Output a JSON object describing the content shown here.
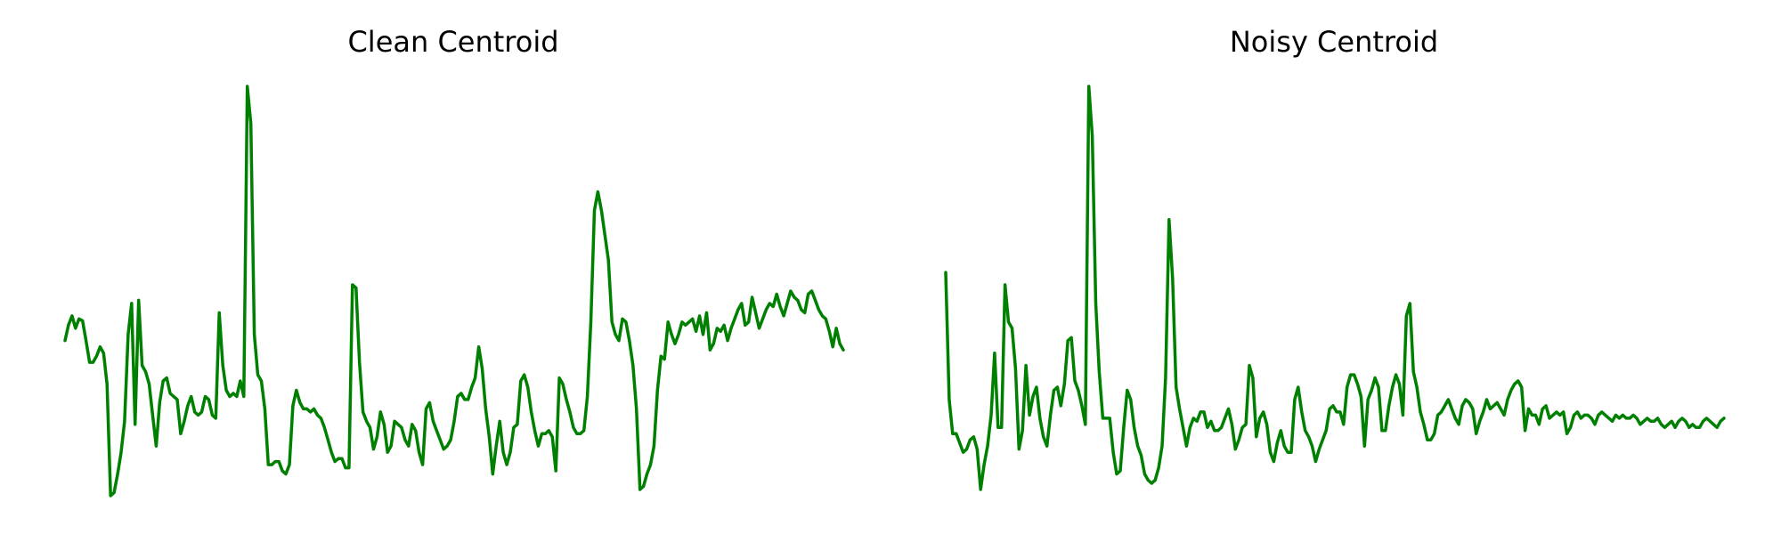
{
  "figure": {
    "titles": [
      "Clean Centroid",
      "Noisy Centroid"
    ]
  },
  "chart_data": [
    {
      "type": "line",
      "title": "Clean Centroid",
      "axes_visible": false,
      "grid": false,
      "color": "#008000",
      "ylim": [
        -2.2,
        4.3
      ],
      "series": [
        {
          "y": [
            0.2,
            0.45,
            0.6,
            0.4,
            0.55,
            0.52,
            0.2,
            -0.15,
            -0.15,
            -0.05,
            0.1,
            0.0,
            -0.5,
            -2.3,
            -2.25,
            -1.95,
            -1.6,
            -1.1,
            0.3,
            0.8,
            -1.15,
            0.85,
            -0.2,
            -0.3,
            -0.5,
            -1.0,
            -1.5,
            -0.8,
            -0.45,
            -0.4,
            -0.65,
            -0.7,
            -0.75,
            -1.3,
            -1.1,
            -0.85,
            -0.7,
            -0.95,
            -1.0,
            -0.95,
            -0.7,
            -0.75,
            -1.0,
            -1.05,
            0.65,
            -0.2,
            -0.6,
            -0.7,
            -0.65,
            -0.7,
            -0.45,
            -0.7,
            4.3,
            3.7,
            0.3,
            -0.35,
            -0.45,
            -0.9,
            -1.8,
            -1.8,
            -1.75,
            -1.75,
            -1.9,
            -1.95,
            -1.8,
            -0.85,
            -0.6,
            -0.8,
            -0.9,
            -0.9,
            -0.95,
            -0.9,
            -1.0,
            -1.05,
            -1.2,
            -1.4,
            -1.6,
            -1.75,
            -1.7,
            -1.7,
            -1.85,
            -1.85,
            1.1,
            1.05,
            -0.15,
            -0.95,
            -1.1,
            -1.2,
            -1.55,
            -1.35,
            -0.95,
            -1.15,
            -1.6,
            -1.5,
            -1.1,
            -1.15,
            -1.2,
            -1.4,
            -1.5,
            -1.15,
            -1.25,
            -1.6,
            -1.8,
            -0.9,
            -0.8,
            -1.1,
            -1.25,
            -1.4,
            -1.55,
            -1.5,
            -1.4,
            -1.1,
            -0.7,
            -0.65,
            -0.75,
            -0.75,
            -0.55,
            -0.4,
            0.1,
            -0.25,
            -0.9,
            -1.35,
            -1.95,
            -1.5,
            -1.1,
            -1.6,
            -1.8,
            -1.6,
            -1.2,
            -1.15,
            -0.45,
            -0.35,
            -0.55,
            -0.95,
            -1.25,
            -1.5,
            -1.3,
            -1.3,
            -1.25,
            -1.35,
            -1.9,
            -0.4,
            -0.5,
            -0.75,
            -0.95,
            -1.2,
            -1.3,
            -1.3,
            -1.25,
            -0.7,
            0.5,
            2.3,
            2.6,
            2.3,
            1.9,
            1.5,
            0.5,
            0.3,
            0.2,
            0.55,
            0.5,
            0.2,
            -0.2,
            -0.9,
            -2.2,
            -2.15,
            -1.95,
            -1.8,
            -1.5,
            -0.6,
            -0.05,
            -0.1,
            0.5,
            0.3,
            0.15,
            0.3,
            0.5,
            0.45,
            0.5,
            0.55,
            0.35,
            0.6,
            0.3,
            0.65,
            0.05,
            0.15,
            0.4,
            0.35,
            0.45,
            0.2,
            0.4,
            0.55,
            0.7,
            0.8,
            0.45,
            0.5,
            0.9,
            0.65,
            0.4,
            0.55,
            0.7,
            0.8,
            0.75,
            0.95,
            0.75,
            0.6,
            0.8,
            1.0,
            0.9,
            0.85,
            0.7,
            0.65,
            0.95,
            1.0,
            0.85,
            0.7,
            0.6,
            0.55,
            0.35,
            0.1,
            0.4,
            0.15,
            0.05
          ]
        }
      ]
    },
    {
      "type": "line",
      "title": "Noisy Centroid",
      "axes_visible": false,
      "grid": false,
      "color": "#008000",
      "ylim": [
        -2.2,
        4.3
      ],
      "series": [
        {
          "y": [
            1.3,
            -0.75,
            -1.3,
            -1.3,
            -1.45,
            -1.6,
            -1.55,
            -1.4,
            -1.35,
            -1.55,
            -2.2,
            -1.8,
            -1.5,
            -1.0,
            0.0,
            -1.2,
            -1.2,
            1.1,
            0.5,
            0.4,
            -0.25,
            -1.55,
            -1.25,
            -0.2,
            -1.0,
            -0.7,
            -0.55,
            -1.05,
            -1.35,
            -1.5,
            -1.0,
            -0.6,
            -0.55,
            -0.85,
            -0.5,
            0.2,
            0.25,
            -0.45,
            -0.6,
            -0.85,
            -1.15,
            4.3,
            3.5,
            0.8,
            -0.3,
            -1.05,
            -1.05,
            -1.05,
            -1.6,
            -1.95,
            -1.9,
            -1.2,
            -0.6,
            -0.75,
            -1.2,
            -1.5,
            -1.65,
            -1.95,
            -2.05,
            -2.1,
            -2.05,
            -1.85,
            -1.5,
            -0.4,
            2.15,
            1.2,
            -0.55,
            -0.9,
            -1.2,
            -1.5,
            -1.2,
            -1.05,
            -1.1,
            -0.95,
            -0.95,
            -1.2,
            -1.1,
            -1.25,
            -1.25,
            -1.2,
            -1.05,
            -0.9,
            -1.15,
            -1.55,
            -1.4,
            -1.2,
            -1.15,
            -0.2,
            -0.4,
            -1.35,
            -1.05,
            -0.95,
            -1.15,
            -1.6,
            -1.75,
            -1.45,
            -1.25,
            -1.5,
            -1.6,
            -1.6,
            -0.75,
            -0.55,
            -0.95,
            -1.25,
            -1.35,
            -1.5,
            -1.75,
            -1.55,
            -1.4,
            -1.25,
            -0.9,
            -0.85,
            -0.95,
            -0.95,
            -1.15,
            -0.55,
            -0.35,
            -0.35,
            -0.5,
            -0.7,
            -1.5,
            -0.75,
            -0.6,
            -0.4,
            -0.55,
            -1.25,
            -1.25,
            -0.85,
            -0.55,
            -0.35,
            -0.5,
            -1.0,
            0.6,
            0.8,
            -0.3,
            -0.55,
            -0.95,
            -1.15,
            -1.4,
            -1.4,
            -1.3,
            -1.0,
            -0.95,
            -0.85,
            -0.75,
            -0.9,
            -1.05,
            -1.15,
            -0.85,
            -0.75,
            -0.8,
            -0.9,
            -1.3,
            -1.1,
            -0.95,
            -0.75,
            -0.9,
            -0.85,
            -0.8,
            -0.9,
            -1.0,
            -0.75,
            -0.6,
            -0.5,
            -0.45,
            -0.55,
            -1.25,
            -0.9,
            -1.0,
            -1.0,
            -1.15,
            -0.9,
            -0.85,
            -1.05,
            -1.0,
            -0.95,
            -1.0,
            -0.95,
            -1.3,
            -1.2,
            -1.0,
            -0.95,
            -1.05,
            -1.0,
            -1.0,
            -1.05,
            -1.15,
            -1.0,
            -0.95,
            -1.0,
            -1.05,
            -1.1,
            -1.0,
            -1.05,
            -1.0,
            -1.05,
            -1.05,
            -1.0,
            -1.05,
            -1.15,
            -1.1,
            -1.05,
            -1.1,
            -1.1,
            -1.05,
            -1.15,
            -1.2,
            -1.15,
            -1.1,
            -1.2,
            -1.1,
            -1.05,
            -1.1,
            -1.2,
            -1.15,
            -1.2,
            -1.2,
            -1.1,
            -1.05,
            -1.1,
            -1.15,
            -1.2,
            -1.1,
            -1.05
          ]
        }
      ]
    }
  ]
}
